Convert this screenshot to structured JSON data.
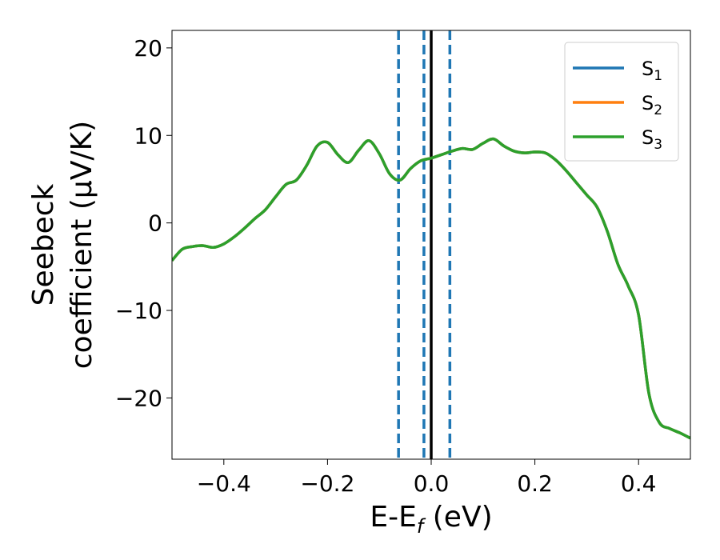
{
  "chart_data": {
    "type": "line",
    "title": "",
    "xlabel": "E-E",
    "xlabel_sub": "f",
    "xlabel_unit": " (eV)",
    "ylabel_line1": "Seebeck",
    "ylabel_line2": "coefficient  (μV/K)",
    "xlim": [
      -0.5,
      0.5
    ],
    "ylim": [
      -27,
      22
    ],
    "xticks": [
      -0.4,
      -0.2,
      0.0,
      0.2,
      0.4
    ],
    "xtick_labels": [
      "−0.4",
      "−0.2",
      "0.0",
      "0.2",
      "0.4"
    ],
    "yticks": [
      -20,
      -10,
      0,
      10,
      20
    ],
    "ytick_labels": [
      "−20",
      "−10",
      "0",
      "10",
      "20"
    ],
    "grid": false,
    "legend_position": "top-right",
    "vlines_dashed": [
      -0.063,
      -0.014,
      0.036
    ],
    "vline_solid": 0.0,
    "x": [
      -0.5,
      -0.48,
      -0.46,
      -0.44,
      -0.42,
      -0.4,
      -0.38,
      -0.36,
      -0.34,
      -0.32,
      -0.3,
      -0.28,
      -0.26,
      -0.24,
      -0.22,
      -0.2,
      -0.18,
      -0.16,
      -0.14,
      -0.12,
      -0.1,
      -0.08,
      -0.06,
      -0.04,
      -0.02,
      0.0,
      0.02,
      0.04,
      0.06,
      0.08,
      0.1,
      0.12,
      0.14,
      0.16,
      0.18,
      0.2,
      0.22,
      0.24,
      0.26,
      0.28,
      0.3,
      0.32,
      0.34,
      0.36,
      0.38,
      0.4,
      0.42,
      0.44,
      0.46,
      0.48,
      0.5
    ],
    "series": [
      {
        "name": "S",
        "sub": "1",
        "color": "#1f77b4",
        "values": [
          -4.3,
          -3.0,
          -2.7,
          -2.6,
          -2.8,
          -2.4,
          -1.6,
          -0.6,
          0.5,
          1.5,
          3.0,
          4.4,
          4.9,
          6.6,
          8.8,
          9.2,
          7.8,
          6.9,
          8.3,
          9.4,
          7.9,
          5.6,
          4.9,
          6.2,
          7.1,
          7.4,
          7.8,
          8.2,
          8.5,
          8.4,
          9.1,
          9.6,
          8.8,
          8.2,
          8.0,
          8.1,
          8.0,
          7.2,
          6.0,
          4.6,
          3.2,
          1.8,
          -1.0,
          -4.7,
          -7.2,
          -10.5,
          -19.5,
          -22.8,
          -23.5,
          -24.0,
          -24.6
        ]
      },
      {
        "name": "S",
        "sub": "2",
        "color": "#ff7f0e",
        "values": [
          -4.3,
          -3.0,
          -2.7,
          -2.6,
          -2.8,
          -2.4,
          -1.6,
          -0.6,
          0.5,
          1.5,
          3.0,
          4.4,
          4.9,
          6.6,
          8.8,
          9.2,
          7.8,
          6.9,
          8.3,
          9.4,
          7.9,
          5.6,
          4.9,
          6.2,
          7.1,
          7.4,
          7.8,
          8.2,
          8.5,
          8.4,
          9.1,
          9.6,
          8.8,
          8.2,
          8.0,
          8.1,
          8.0,
          7.2,
          6.0,
          4.6,
          3.2,
          1.8,
          -1.0,
          -4.7,
          -7.2,
          -10.5,
          -19.5,
          -22.8,
          -23.5,
          -24.0,
          -24.6
        ]
      },
      {
        "name": "S",
        "sub": "3",
        "color": "#2ca02c",
        "values": [
          -4.3,
          -3.0,
          -2.7,
          -2.6,
          -2.8,
          -2.4,
          -1.6,
          -0.6,
          0.5,
          1.5,
          3.0,
          4.4,
          4.9,
          6.6,
          8.8,
          9.2,
          7.8,
          6.9,
          8.3,
          9.4,
          7.9,
          5.6,
          4.9,
          6.2,
          7.1,
          7.4,
          7.8,
          8.2,
          8.5,
          8.4,
          9.1,
          9.6,
          8.8,
          8.2,
          8.0,
          8.1,
          8.0,
          7.2,
          6.0,
          4.6,
          3.2,
          1.8,
          -1.0,
          -4.7,
          -7.2,
          -10.5,
          -19.5,
          -22.8,
          -23.5,
          -24.0,
          -24.6
        ]
      }
    ]
  }
}
